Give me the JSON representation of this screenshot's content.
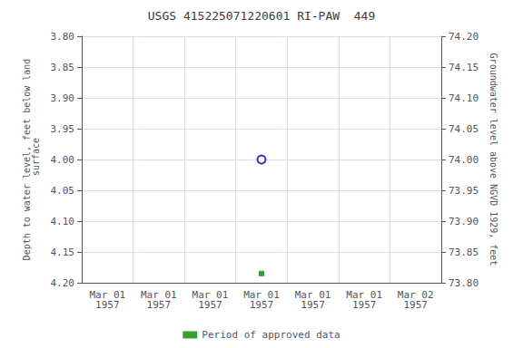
{
  "chart_data": {
    "type": "scatter",
    "title": "USGS 415225071220601 RI-PAW  449",
    "ylabel": "Depth to water level, feet below land\n surface",
    "y2label": "Groundwater level above NGVD 1929, feet",
    "categories": [
      "Mar 01\n1957",
      "Mar 01\n1957",
      "Mar 01\n1957",
      "Mar 01\n1957",
      "Mar 01\n1957",
      "Mar 01\n1957",
      "Mar 02\n1957"
    ],
    "series": [
      {
        "color": "#0000cc",
        "marker": "open_circle",
        "values": [
          null,
          null,
          null,
          4.0,
          null,
          null,
          null
        ]
      },
      {
        "name": "Period of approved data",
        "color": "#008800",
        "marker": "square",
        "values": [
          null,
          null,
          null,
          4.185,
          null,
          null,
          null
        ]
      }
    ],
    "ylim": [
      4.2,
      3.8
    ],
    "yticks": [
      {
        "value": 3.8,
        "label": "3.80"
      },
      3.85,
      {
        "value": 3.9,
        "label": "3.90"
      },
      3.95,
      {
        "value": 4.0,
        "label": "4.00"
      },
      4.05,
      {
        "value": 4.1,
        "label": "4.10"
      },
      4.15,
      {
        "value": 4.2,
        "label": "4.20"
      }
    ],
    "y2lim": [
      73.8,
      74.2
    ],
    "y2ticks": [
      {
        "value": 73.8,
        "label": "73.80"
      },
      73.85,
      {
        "value": 73.9,
        "label": "73.90"
      },
      73.95,
      {
        "value": 74.0,
        "label": "74.00"
      },
      74.05,
      {
        "value": 74.1,
        "label": "74.10"
      },
      74.15,
      {
        "value": 74.2,
        "label": "74.20"
      }
    ],
    "grid": true,
    "legend": "bottom"
  }
}
